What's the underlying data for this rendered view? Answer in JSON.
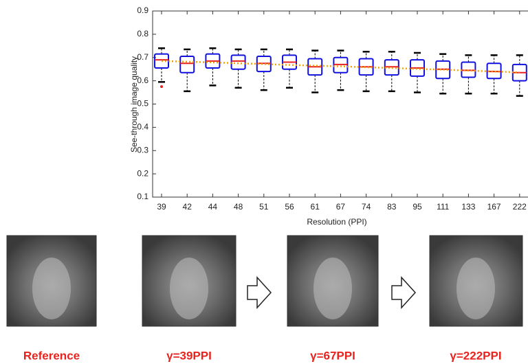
{
  "chart_data": {
    "type": "box",
    "ylabel": "See-through image quality",
    "xlabel": "Resolution (PPI)",
    "categories": [
      "39",
      "42",
      "44",
      "48",
      "51",
      "56",
      "61",
      "67",
      "74",
      "83",
      "95",
      "111",
      "133",
      "167",
      "222"
    ],
    "whisker_low": [
      0.595,
      0.555,
      0.58,
      0.57,
      0.56,
      0.57,
      0.55,
      0.56,
      0.555,
      0.555,
      0.55,
      0.545,
      0.545,
      0.545,
      0.535
    ],
    "q1": [
      0.655,
      0.635,
      0.655,
      0.65,
      0.64,
      0.65,
      0.625,
      0.635,
      0.625,
      0.625,
      0.62,
      0.61,
      0.615,
      0.61,
      0.6
    ],
    "median": [
      0.69,
      0.675,
      0.685,
      0.685,
      0.675,
      0.68,
      0.66,
      0.67,
      0.66,
      0.66,
      0.655,
      0.65,
      0.645,
      0.64,
      0.635
    ],
    "q3": [
      0.715,
      0.705,
      0.715,
      0.71,
      0.705,
      0.71,
      0.695,
      0.7,
      0.695,
      0.69,
      0.69,
      0.685,
      0.68,
      0.675,
      0.67
    ],
    "whisker_high": [
      0.74,
      0.735,
      0.74,
      0.735,
      0.735,
      0.735,
      0.73,
      0.73,
      0.725,
      0.725,
      0.72,
      0.715,
      0.71,
      0.71,
      0.71
    ],
    "outliers": [
      0.575,
      null,
      null,
      null,
      null,
      null,
      null,
      null,
      null,
      null,
      null,
      null,
      null,
      null,
      null
    ],
    "trend": [
      0.685,
      0.682,
      0.679,
      0.675,
      0.672,
      0.668,
      0.665,
      0.662,
      0.658,
      0.655,
      0.651,
      0.648,
      0.644,
      0.64,
      0.636
    ],
    "box_color": "#1010e0",
    "median_color": "#e82020",
    "whisker_color": "#000000",
    "trend_color": "#f0a000",
    "outlier_color": "#e82020",
    "ylim": [
      0.1,
      0.9
    ],
    "yticks": [
      0.1,
      0.2,
      0.3,
      0.4,
      0.5,
      0.6,
      0.7,
      0.8,
      0.9
    ]
  },
  "images": [
    {
      "caption": "Reference"
    },
    {
      "caption": "γ=39PPI"
    },
    {
      "caption": "γ=67PPI"
    },
    {
      "caption": "γ=222PPI"
    }
  ]
}
